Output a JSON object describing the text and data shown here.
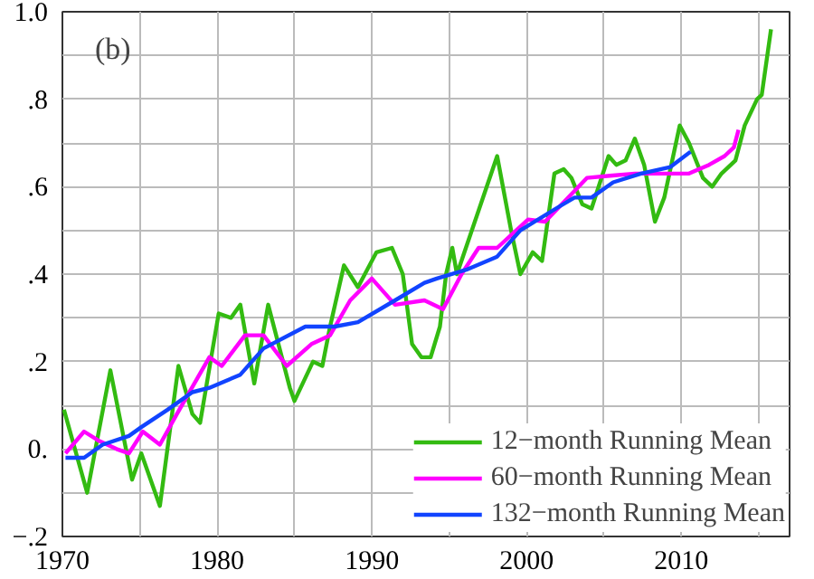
{
  "chart_data": {
    "type": "line",
    "annotations": [
      "(b)"
    ],
    "xlim": [
      1970,
      2017
    ],
    "ylim": [
      -0.2,
      1.0
    ],
    "xticks": [
      1970,
      {
        "value": 1975,
        "label": null
      },
      1980,
      {
        "value": 1985,
        "label": null
      },
      1990,
      {
        "value": 1995,
        "label": null
      },
      2000,
      {
        "value": 2005,
        "label": null
      },
      2010,
      {
        "value": 2015,
        "label": null
      }
    ],
    "yticks": [
      {
        "value": -0.2,
        "label": "−.2"
      },
      {
        "value": -0.1,
        "label": null
      },
      {
        "value": 0,
        "label": "0."
      },
      {
        "value": 0.1,
        "label": null
      },
      {
        "value": 0.2,
        "label": ".2"
      },
      {
        "value": 0.3,
        "label": null
      },
      {
        "value": 0.4,
        "label": ".4"
      },
      {
        "value": 0.5,
        "label": null
      },
      {
        "value": 0.6,
        "label": ".6"
      },
      {
        "value": 0.7,
        "label": null
      },
      {
        "value": 0.8,
        "label": ".8"
      },
      {
        "value": 0.9,
        "label": null
      },
      {
        "value": 1.0,
        "label": "1.0"
      }
    ],
    "grid": true,
    "legend": "bottom right",
    "line_style": "solid",
    "marker": "none",
    "series": [
      {
        "name": "12−month Running Mean",
        "color": "#33bb11",
        "x": [
          1970.1,
          1971.6,
          1973.1,
          1974.5,
          1975.1,
          1976.3,
          1977.5,
          1978.4,
          1978.9,
          1980.1,
          1980.9,
          1981.5,
          1982.4,
          1983.3,
          1984.7,
          1985.0,
          1986.2,
          1986.8,
          1987.3,
          1988.2,
          1989.1,
          1990.3,
          1991.3,
          1992.0,
          1992.6,
          1993.2,
          1993.8,
          1994.4,
          1994.8,
          1995.2,
          1995.5,
          1998.1,
          1999.0,
          1999.6,
          2000.4,
          2001.0,
          2001.8,
          2002.4,
          2002.9,
          2003.6,
          2004.2,
          2005.3,
          2005.8,
          2006.4,
          2007.0,
          2007.6,
          2008.3,
          2008.9,
          2009.9,
          2010.5,
          2011.4,
          2012.0,
          2012.6,
          2013.5,
          2014.1,
          2014.9,
          2015.2,
          2015.8
        ],
        "values": [
          0.09,
          -0.1,
          0.18,
          -0.07,
          -0.01,
          -0.13,
          0.19,
          0.08,
          0.06,
          0.31,
          0.3,
          0.33,
          0.15,
          0.33,
          0.14,
          0.11,
          0.2,
          0.19,
          0.28,
          0.42,
          0.37,
          0.45,
          0.46,
          0.4,
          0.24,
          0.21,
          0.21,
          0.28,
          0.4,
          0.46,
          0.4,
          0.67,
          0.5,
          0.4,
          0.45,
          0.43,
          0.63,
          0.64,
          0.62,
          0.56,
          0.55,
          0.67,
          0.65,
          0.66,
          0.71,
          0.65,
          0.52,
          0.575,
          0.74,
          0.7,
          0.62,
          0.6,
          0.63,
          0.66,
          0.74,
          0.8,
          0.81,
          0.96
        ]
      },
      {
        "name": "60−month Running Mean",
        "color": "#ff00ff",
        "x": [
          1970.2,
          1971.4,
          1972.3,
          1973.5,
          1974.3,
          1975.2,
          1976.3,
          1977.4,
          1979.5,
          1980.3,
          1981.8,
          1983.0,
          1984.5,
          1986.1,
          1987.3,
          1988.6,
          1990.0,
          1991.5,
          1993.4,
          1994.6,
          1995.8,
          1996.9,
          1998.1,
          2000.1,
          2001.2,
          2003.9,
          2005.4,
          2007.0,
          2008.5,
          2010.5,
          2011.8,
          2012.8,
          2013.4,
          2013.7
        ],
        "values": [
          -0.01,
          0.04,
          0.02,
          0.0,
          -0.01,
          0.04,
          0.01,
          0.08,
          0.21,
          0.19,
          0.26,
          0.26,
          0.19,
          0.24,
          0.26,
          0.34,
          0.39,
          0.33,
          0.34,
          0.32,
          0.4,
          0.46,
          0.46,
          0.525,
          0.52,
          0.62,
          0.625,
          0.63,
          0.63,
          0.63,
          0.65,
          0.67,
          0.69,
          0.73
        ]
      },
      {
        "name": "132−month Running Mean",
        "color": "#1144ff",
        "x": [
          1970.2,
          1971.4,
          1972.6,
          1974.3,
          1975.1,
          1976.8,
          1978.4,
          1979.5,
          1981.5,
          1983.0,
          1985.7,
          1987.6,
          1989.1,
          1991.5,
          1993.4,
          1994.2,
          1996.1,
          1998.1,
          1999.6,
          2001.9,
          2003.1,
          2004.2,
          2005.6,
          2007.4,
          2009.3,
          2010.6
        ],
        "values": [
          -0.02,
          -0.02,
          0.01,
          0.03,
          0.05,
          0.09,
          0.13,
          0.14,
          0.17,
          0.23,
          0.28,
          0.28,
          0.29,
          0.34,
          0.38,
          0.39,
          0.41,
          0.44,
          0.5,
          0.55,
          0.575,
          0.575,
          0.61,
          0.63,
          0.645,
          0.68
        ]
      }
    ]
  }
}
